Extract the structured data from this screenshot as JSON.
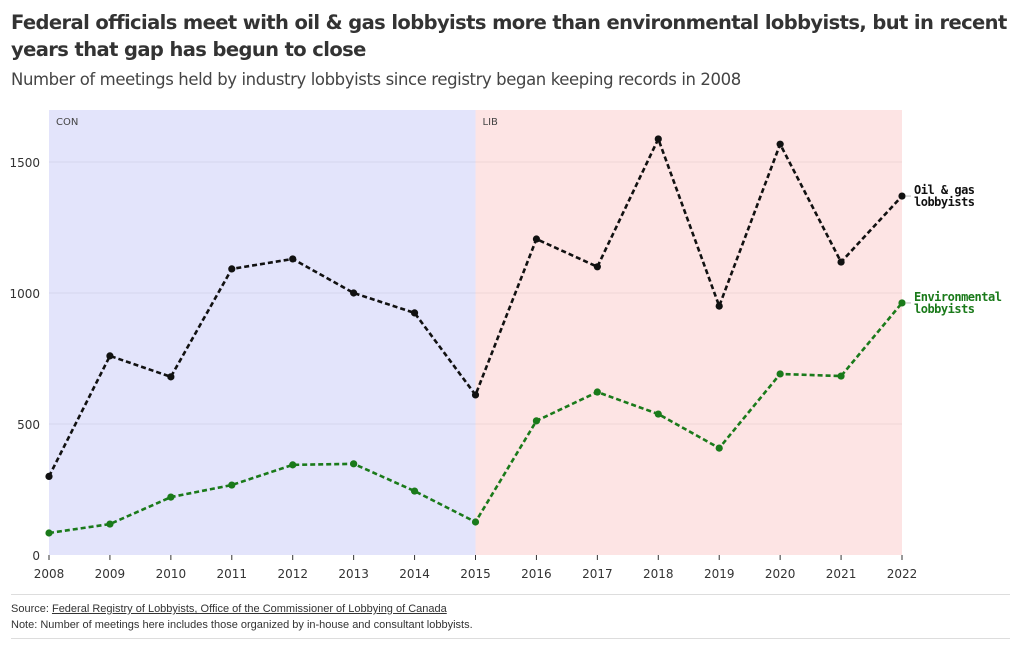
{
  "header": {
    "title": "Federal officials meet with oil & gas lobbyists more than environmental lobbyists, but in recent years that gap has begun to close",
    "subtitle": "Number of meetings held by industry lobbyists since registry began keeping records in 2008"
  },
  "footer": {
    "source_prefix": "Source: ",
    "source_link": "Federal Registry of Lobbyists, Office of the Commissioner of Lobbying of Canada",
    "note": "Note: Number of meetings here includes those organized by in-house and consultant lobbyists."
  },
  "chart_data": {
    "type": "line",
    "title": "Federal officials meet with oil & gas lobbyists more than environmental lobbyists, but in recent years that gap has begun to close",
    "subtitle": "Number of meetings held by industry lobbyists since registry began keeping records in 2008",
    "xlabel": "",
    "ylabel": "",
    "x": [
      2008,
      2009,
      2010,
      2011,
      2012,
      2013,
      2014,
      2015,
      2016,
      2017,
      2018,
      2019,
      2020,
      2021,
      2022
    ],
    "xlim": [
      2008,
      2022
    ],
    "ylim": [
      0,
      1700
    ],
    "yticks": [
      0,
      500,
      1000,
      1500
    ],
    "grid": true,
    "legend": "direct labels at right end of lines",
    "series": [
      {
        "name": "Oil & gas lobbyists",
        "label_lines": [
          "Oil & gas",
          "lobbyists"
        ],
        "color": "#111111",
        "values": [
          300,
          760,
          680,
          1092,
          1130,
          1000,
          924,
          611,
          1206,
          1100,
          1588,
          950,
          1568,
          1118,
          1370
        ]
      },
      {
        "name": "Environmental lobbyists",
        "label_lines": [
          "Environmental",
          "lobbyists"
        ],
        "color": "#1a7a1a",
        "values": [
          84,
          118,
          221,
          267,
          344,
          348,
          244,
          126,
          512,
          622,
          538,
          408,
          691,
          683,
          962
        ]
      }
    ],
    "bands": [
      {
        "label": "CON",
        "from": 2008,
        "to": 2015,
        "color": "#e3e4fb"
      },
      {
        "label": "LIB",
        "from": 2015,
        "to": 2022,
        "color": "#fde4e4"
      }
    ]
  }
}
